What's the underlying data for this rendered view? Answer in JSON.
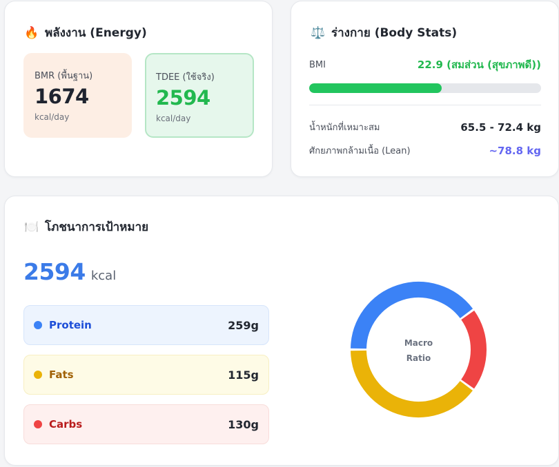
{
  "energy": {
    "icon": "fire-icon",
    "title": "พลังงาน (Energy)",
    "bmr": {
      "label": "BMR (พื้นฐาน)",
      "value": "1674",
      "unit": "kcal/day"
    },
    "tdee": {
      "label": "TDEE (ใช้จริง)",
      "value": "2594",
      "unit": "kcal/day"
    }
  },
  "body_stats": {
    "icon": "scale-icon",
    "title": "ร่างกาย (Body Stats)",
    "bmi_label": "BMI",
    "bmi_value": "22.9 (สมส่วน (สุขภาพดี))",
    "bmi_progress": 0.57,
    "ideal_weight_label": "น้ำหนักที่เหมาะสม",
    "ideal_weight_value": "65.5 - 72.4 kg",
    "lean_label": "ศักยภาพกล้ามเนื้อ (Lean)",
    "lean_value": "~78.8 kg"
  },
  "nutrition": {
    "icon": "plate-icon",
    "title": "โภชนาการเป้าหมาย",
    "total_kcal": "2594",
    "total_unit": "kcal",
    "macros": [
      {
        "name": "Protein",
        "value": "259g",
        "grams": 259,
        "color": "#3b82f6",
        "text_color": "#1d4ed8"
      },
      {
        "name": "Fats",
        "value": "115g",
        "grams": 115,
        "color": "#eab308",
        "text_color": "#a16207"
      },
      {
        "name": "Carbs",
        "value": "130g",
        "grams": 130,
        "color": "#ef4444",
        "text_color": "#b91c1c"
      }
    ],
    "donut_label_line1": "Macro",
    "donut_label_line2": "Ratio"
  },
  "colors": {
    "green": "#22c55e",
    "blue": "#3b7be8",
    "indigo": "#6366f1"
  }
}
